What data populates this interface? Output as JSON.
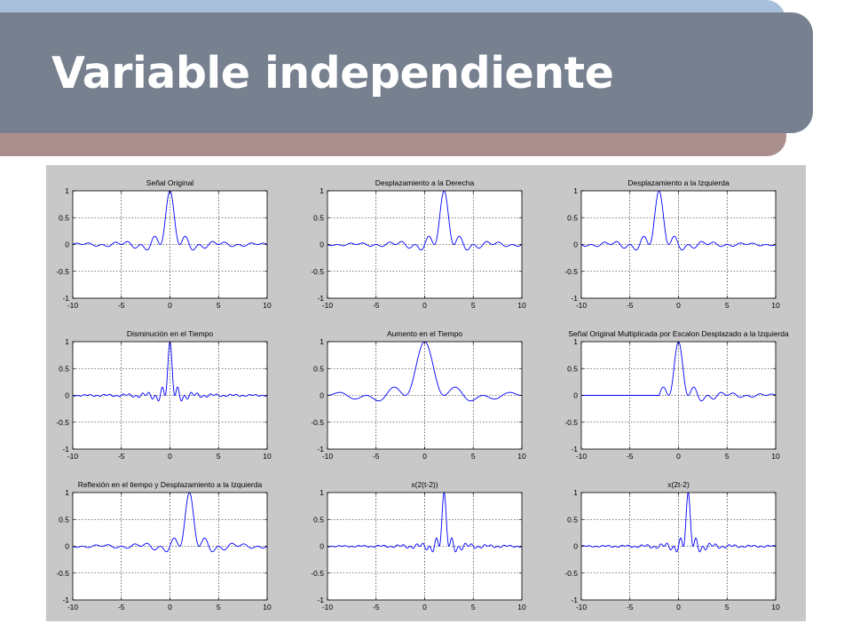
{
  "slide": {
    "title": "Variable independiente"
  },
  "chart_data": [
    {
      "type": "line",
      "title": "Señal Original",
      "transform": "x(t)",
      "xlim": [
        -10,
        10
      ],
      "ylim": [
        -1,
        1
      ],
      "xticks": [
        -10,
        -5,
        0,
        5,
        10
      ],
      "yticks": [
        -1,
        -0.5,
        0,
        0.5,
        1
      ],
      "grid": true,
      "series_color": "#0000ff"
    },
    {
      "type": "line",
      "title": "Desplazamiento a la Derecha",
      "transform": "x(t-2)",
      "xlim": [
        -10,
        10
      ],
      "ylim": [
        -1,
        1
      ],
      "xticks": [
        -10,
        -5,
        0,
        5,
        10
      ],
      "yticks": [
        -1,
        -0.5,
        0,
        0.5,
        1
      ],
      "grid": true,
      "series_color": "#0000ff"
    },
    {
      "type": "line",
      "title": "Desplazamiento a la Izquierda",
      "transform": "x(t+2)",
      "xlim": [
        -10,
        10
      ],
      "ylim": [
        -1,
        1
      ],
      "xticks": [
        -10,
        -5,
        0,
        5,
        10
      ],
      "yticks": [
        -1,
        -0.5,
        0,
        0.5,
        1
      ],
      "grid": true,
      "series_color": "#0000ff"
    },
    {
      "type": "line",
      "title": "Disminución en el Tiempo",
      "transform": "x(2t)",
      "xlim": [
        -10,
        10
      ],
      "ylim": [
        -1,
        1
      ],
      "xticks": [
        -10,
        -5,
        0,
        5,
        10
      ],
      "yticks": [
        -1,
        -0.5,
        0,
        0.5,
        1
      ],
      "grid": true,
      "series_color": "#0000ff"
    },
    {
      "type": "line",
      "title": "Aumento en el Tiempo",
      "transform": "x(t/2)",
      "xlim": [
        -10,
        10
      ],
      "ylim": [
        -1,
        1
      ],
      "xticks": [
        -10,
        -5,
        0,
        5,
        10
      ],
      "yticks": [
        -1,
        -0.5,
        0,
        0.5,
        1
      ],
      "grid": true,
      "series_color": "#0000ff"
    },
    {
      "type": "line",
      "title": "Señal Original Multiplicada por Escalon Desplazado a la Izquierda",
      "transform": "x(t)u(t+2)",
      "xlim": [
        -10,
        10
      ],
      "ylim": [
        -1,
        1
      ],
      "xticks": [
        -10,
        -5,
        0,
        5,
        10
      ],
      "yticks": [
        -1,
        -0.5,
        0,
        0.5,
        1
      ],
      "grid": true,
      "series_color": "#0000ff"
    },
    {
      "type": "line",
      "title": "Reflexión en el tiempo y Desplazamiento a la Izquierda",
      "transform": "x(-(t-2))",
      "xlim": [
        -10,
        10
      ],
      "ylim": [
        -1,
        1
      ],
      "xticks": [
        -10,
        -5,
        0,
        5,
        10
      ],
      "yticks": [
        -1,
        -0.5,
        0,
        0.5,
        1
      ],
      "grid": true,
      "series_color": "#0000ff"
    },
    {
      "type": "line",
      "title": "x(2(t-2))",
      "transform": "x(2(t-2))",
      "xlim": [
        -10,
        10
      ],
      "ylim": [
        -1,
        1
      ],
      "xticks": [
        -10,
        -5,
        0,
        5,
        10
      ],
      "yticks": [
        -1,
        -0.5,
        0,
        0.5,
        1
      ],
      "grid": true,
      "series_color": "#0000ff"
    },
    {
      "type": "line",
      "title": "x(2t-2)",
      "transform": "x(2t-2)",
      "xlim": [
        -10,
        10
      ],
      "ylim": [
        -1,
        1
      ],
      "xticks": [
        -10,
        -5,
        0,
        5,
        10
      ],
      "yticks": [
        -1,
        -0.5,
        0,
        0.5,
        1
      ],
      "grid": true,
      "series_color": "#0000ff"
    }
  ]
}
